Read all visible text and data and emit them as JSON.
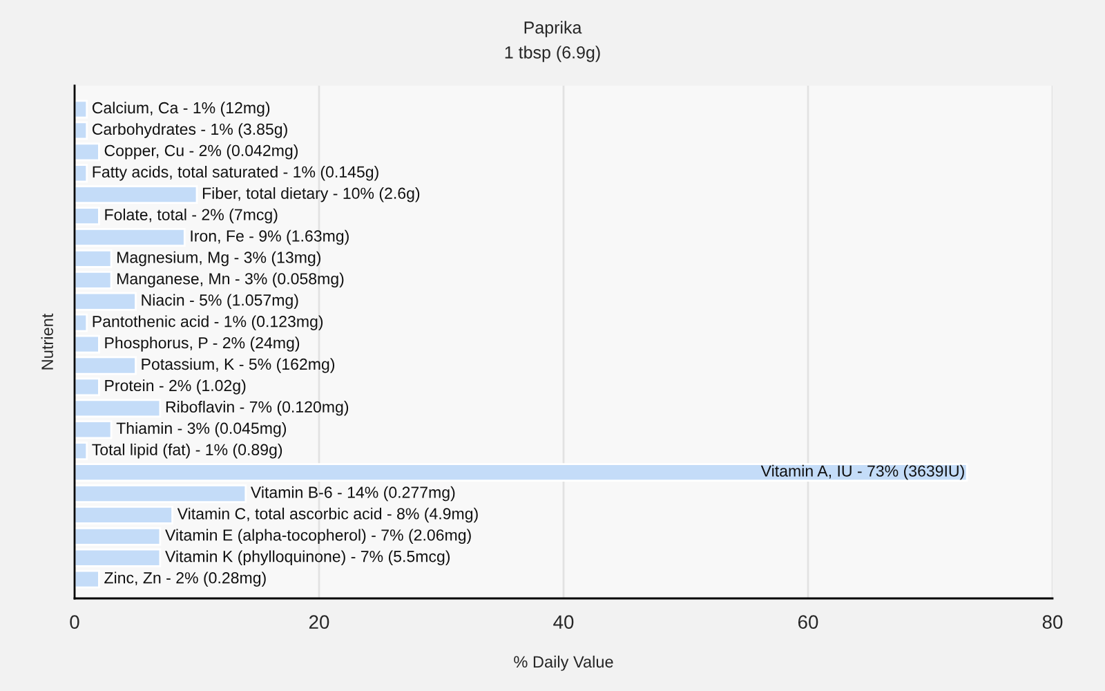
{
  "chart_data": {
    "type": "bar",
    "orientation": "horizontal",
    "title": "Paprika",
    "subtitle": "1 tbsp (6.9g)",
    "xlabel": "% Daily Value",
    "ylabel": "Nutrient",
    "categories": [
      "Calcium, Ca - 1% (12mg)",
      "Carbohydrates - 1% (3.85g)",
      "Copper, Cu - 2% (0.042mg)",
      "Fatty acids, total saturated - 1% (0.145g)",
      "Fiber, total dietary - 10% (2.6g)",
      "Folate, total - 2% (7mcg)",
      "Iron, Fe - 9% (1.63mg)",
      "Magnesium, Mg - 3% (13mg)",
      "Manganese, Mn - 3% (0.058mg)",
      "Niacin - 5% (1.057mg)",
      "Pantothenic acid - 1% (0.123mg)",
      "Phosphorus, P - 2% (24mg)",
      "Potassium, K - 5% (162mg)",
      "Protein - 2% (1.02g)",
      "Riboflavin - 7% (0.120mg)",
      "Thiamin - 3% (0.045mg)",
      "Total lipid (fat) - 1% (0.89g)",
      "Vitamin A, IU - 73% (3639IU)",
      "Vitamin B-6 - 14% (0.277mg)",
      "Vitamin C, total ascorbic acid - 8% (4.9mg)",
      "Vitamin E (alpha-tocopherol) - 7% (2.06mg)",
      "Vitamin K (phylloquinone) - 7% (5.5mcg)",
      "Zinc, Zn - 2% (0.28mg)"
    ],
    "values": [
      1,
      1,
      2,
      1,
      10,
      2,
      9,
      3,
      3,
      5,
      1,
      2,
      5,
      2,
      7,
      3,
      1,
      73,
      14,
      8,
      7,
      7,
      2
    ],
    "color": "#c4dcf8",
    "xlim": [
      0,
      80
    ],
    "xticks": [
      0,
      20,
      40,
      60,
      80
    ],
    "grid": "x",
    "tick_labels": "x"
  }
}
